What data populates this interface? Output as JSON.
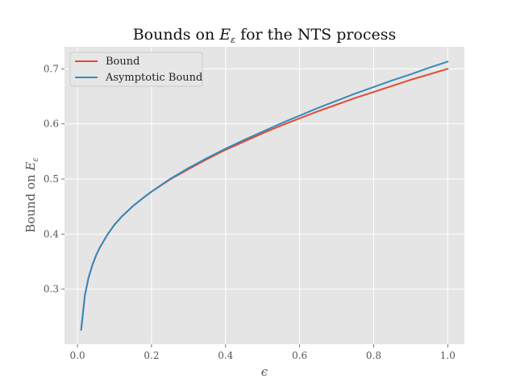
{
  "chart_data": {
    "type": "line",
    "title_prefix": "Bounds on ",
    "title_var": "E",
    "title_sub": "ε",
    "title_suffix": " for the NTS process",
    "xlabel": "ϵ",
    "ylabel_prefix": "Bound on ",
    "ylabel_var": "E",
    "ylabel_sub": "ε",
    "xlim": [
      -0.035,
      1.045
    ],
    "ylim": [
      0.2,
      0.74
    ],
    "xticks": [
      0.0,
      0.2,
      0.4,
      0.6,
      0.8,
      1.0
    ],
    "xtick_labels": [
      "0.0",
      "0.2",
      "0.4",
      "0.6",
      "0.8",
      "1.0"
    ],
    "yticks": [
      0.3,
      0.4,
      0.5,
      0.6,
      0.7
    ],
    "ytick_labels": [
      "0.3",
      "0.4",
      "0.5",
      "0.6",
      "0.7"
    ],
    "grid": true,
    "legend_position": "top-left",
    "series": [
      {
        "name": "Bound",
        "color": "#E24A33",
        "x": [
          0.01,
          0.02,
          0.03,
          0.04,
          0.05,
          0.06,
          0.08,
          0.1,
          0.12,
          0.15,
          0.18,
          0.2,
          0.25,
          0.3,
          0.35,
          0.4,
          0.45,
          0.5,
          0.55,
          0.6,
          0.65,
          0.7,
          0.75,
          0.8,
          0.85,
          0.9,
          0.95,
          1.0
        ],
        "y": [
          0.226,
          0.289,
          0.321,
          0.343,
          0.361,
          0.375,
          0.398,
          0.417,
          0.432,
          0.451,
          0.467,
          0.477,
          0.499,
          0.518,
          0.536,
          0.553,
          0.568,
          0.583,
          0.597,
          0.61,
          0.623,
          0.635,
          0.647,
          0.658,
          0.669,
          0.68,
          0.69,
          0.7
        ]
      },
      {
        "name": "Asymptotic Bound",
        "color": "#348ABD",
        "x": [
          0.01,
          0.02,
          0.03,
          0.04,
          0.05,
          0.06,
          0.08,
          0.1,
          0.12,
          0.15,
          0.18,
          0.2,
          0.25,
          0.3,
          0.35,
          0.4,
          0.45,
          0.5,
          0.55,
          0.6,
          0.65,
          0.7,
          0.75,
          0.8,
          0.85,
          0.9,
          0.95,
          1.0
        ],
        "y": [
          0.226,
          0.289,
          0.321,
          0.343,
          0.361,
          0.375,
          0.398,
          0.417,
          0.432,
          0.451,
          0.467,
          0.477,
          0.5,
          0.52,
          0.538,
          0.555,
          0.571,
          0.586,
          0.601,
          0.615,
          0.629,
          0.642,
          0.655,
          0.667,
          0.679,
          0.69,
          0.702,
          0.713
        ]
      }
    ]
  }
}
